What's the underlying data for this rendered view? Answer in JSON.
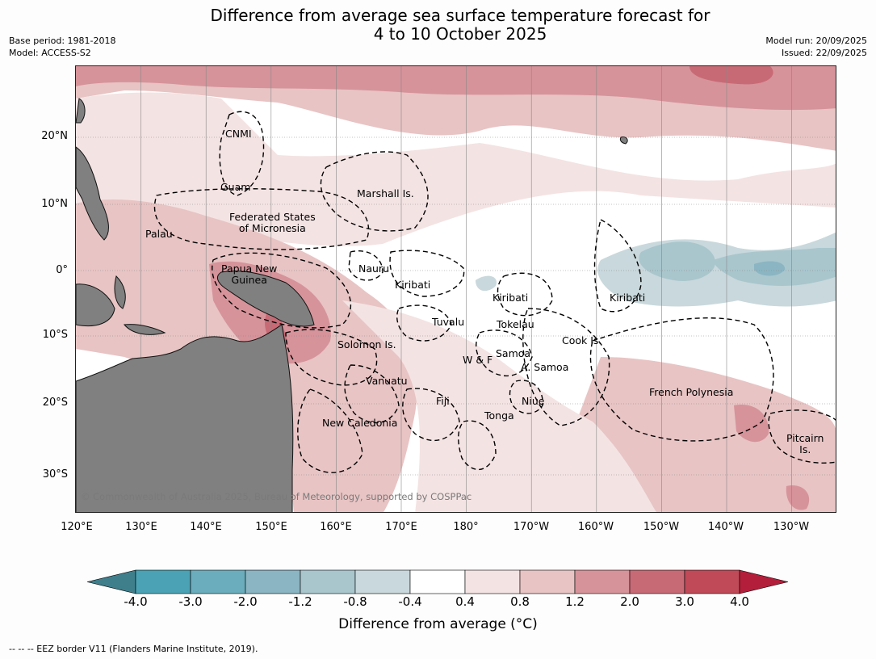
{
  "title": {
    "line1": "Difference from average sea surface temperature forecast for",
    "line2": "4 to 10 October 2025"
  },
  "meta": {
    "base_period": "Base period: 1981-2018",
    "model": "Model: ACCESS-S2",
    "model_run": "Model run: 20/09/2025",
    "issued": "Issued: 22/09/2025"
  },
  "map": {
    "copyright": "© Commonwealth of Australia 2025, Bureau of Meteorology, supported by COSPPac",
    "lat_labels": [
      "20°N",
      "10°N",
      "0°",
      "10°S",
      "20°S",
      "30°S"
    ],
    "lon_labels": [
      "120°E",
      "130°E",
      "140°E",
      "150°E",
      "160°E",
      "170°E",
      "180°",
      "170°W",
      "160°W",
      "150°W",
      "140°W",
      "130°W"
    ],
    "places": {
      "cnmi": "CNMI",
      "guam": "Guam",
      "marshall": "Marshall Is.",
      "micronesia1": "Federated States",
      "micronesia2": "of Micronesia",
      "palau": "Palau",
      "nauru": "Nauru",
      "png1": "Papua New",
      "png2": "Guinea",
      "kiribati_w": "Kiribati",
      "kiribati_c": "Kiribati",
      "kiribati_e": "Kiribati",
      "tuvalu": "Tuvalu",
      "tokelau": "Tokelau",
      "cook": "Cook Is.",
      "solomon": "Solomon Is.",
      "samoa": "Samoa",
      "wf": "W & F",
      "asamoa": "A. Samoa",
      "vanuatu": "Vanuatu",
      "fiji": "Fiji",
      "niue": "Niue",
      "tonga": "Tonga",
      "frenchpoly": "French Polynesia",
      "newcal": "New Caledonia",
      "pitcairn1": "Pitcairn",
      "pitcairn2": "Is."
    }
  },
  "colorbar": {
    "title": "Difference from average (°C)",
    "tick_labels": [
      "-4.0",
      "-3.0",
      "-2.0",
      "-1.2",
      "-0.8",
      "-0.4",
      "0.4",
      "0.8",
      "1.2",
      "2.0",
      "3.0",
      "4.0"
    ],
    "colors": [
      "#3f7f8c",
      "#4ba2b4",
      "#6badbc",
      "#8bb5c2",
      "#a9c6cd",
      "#c9d8dc",
      "#ffffff",
      "#f4e3e3",
      "#e8c4c4",
      "#d6939a",
      "#c86a75",
      "#c14a58",
      "#b31e3a"
    ]
  },
  "footer": "--  --  -- EEZ border V11 (Flanders Marine Institute, 2019)."
}
